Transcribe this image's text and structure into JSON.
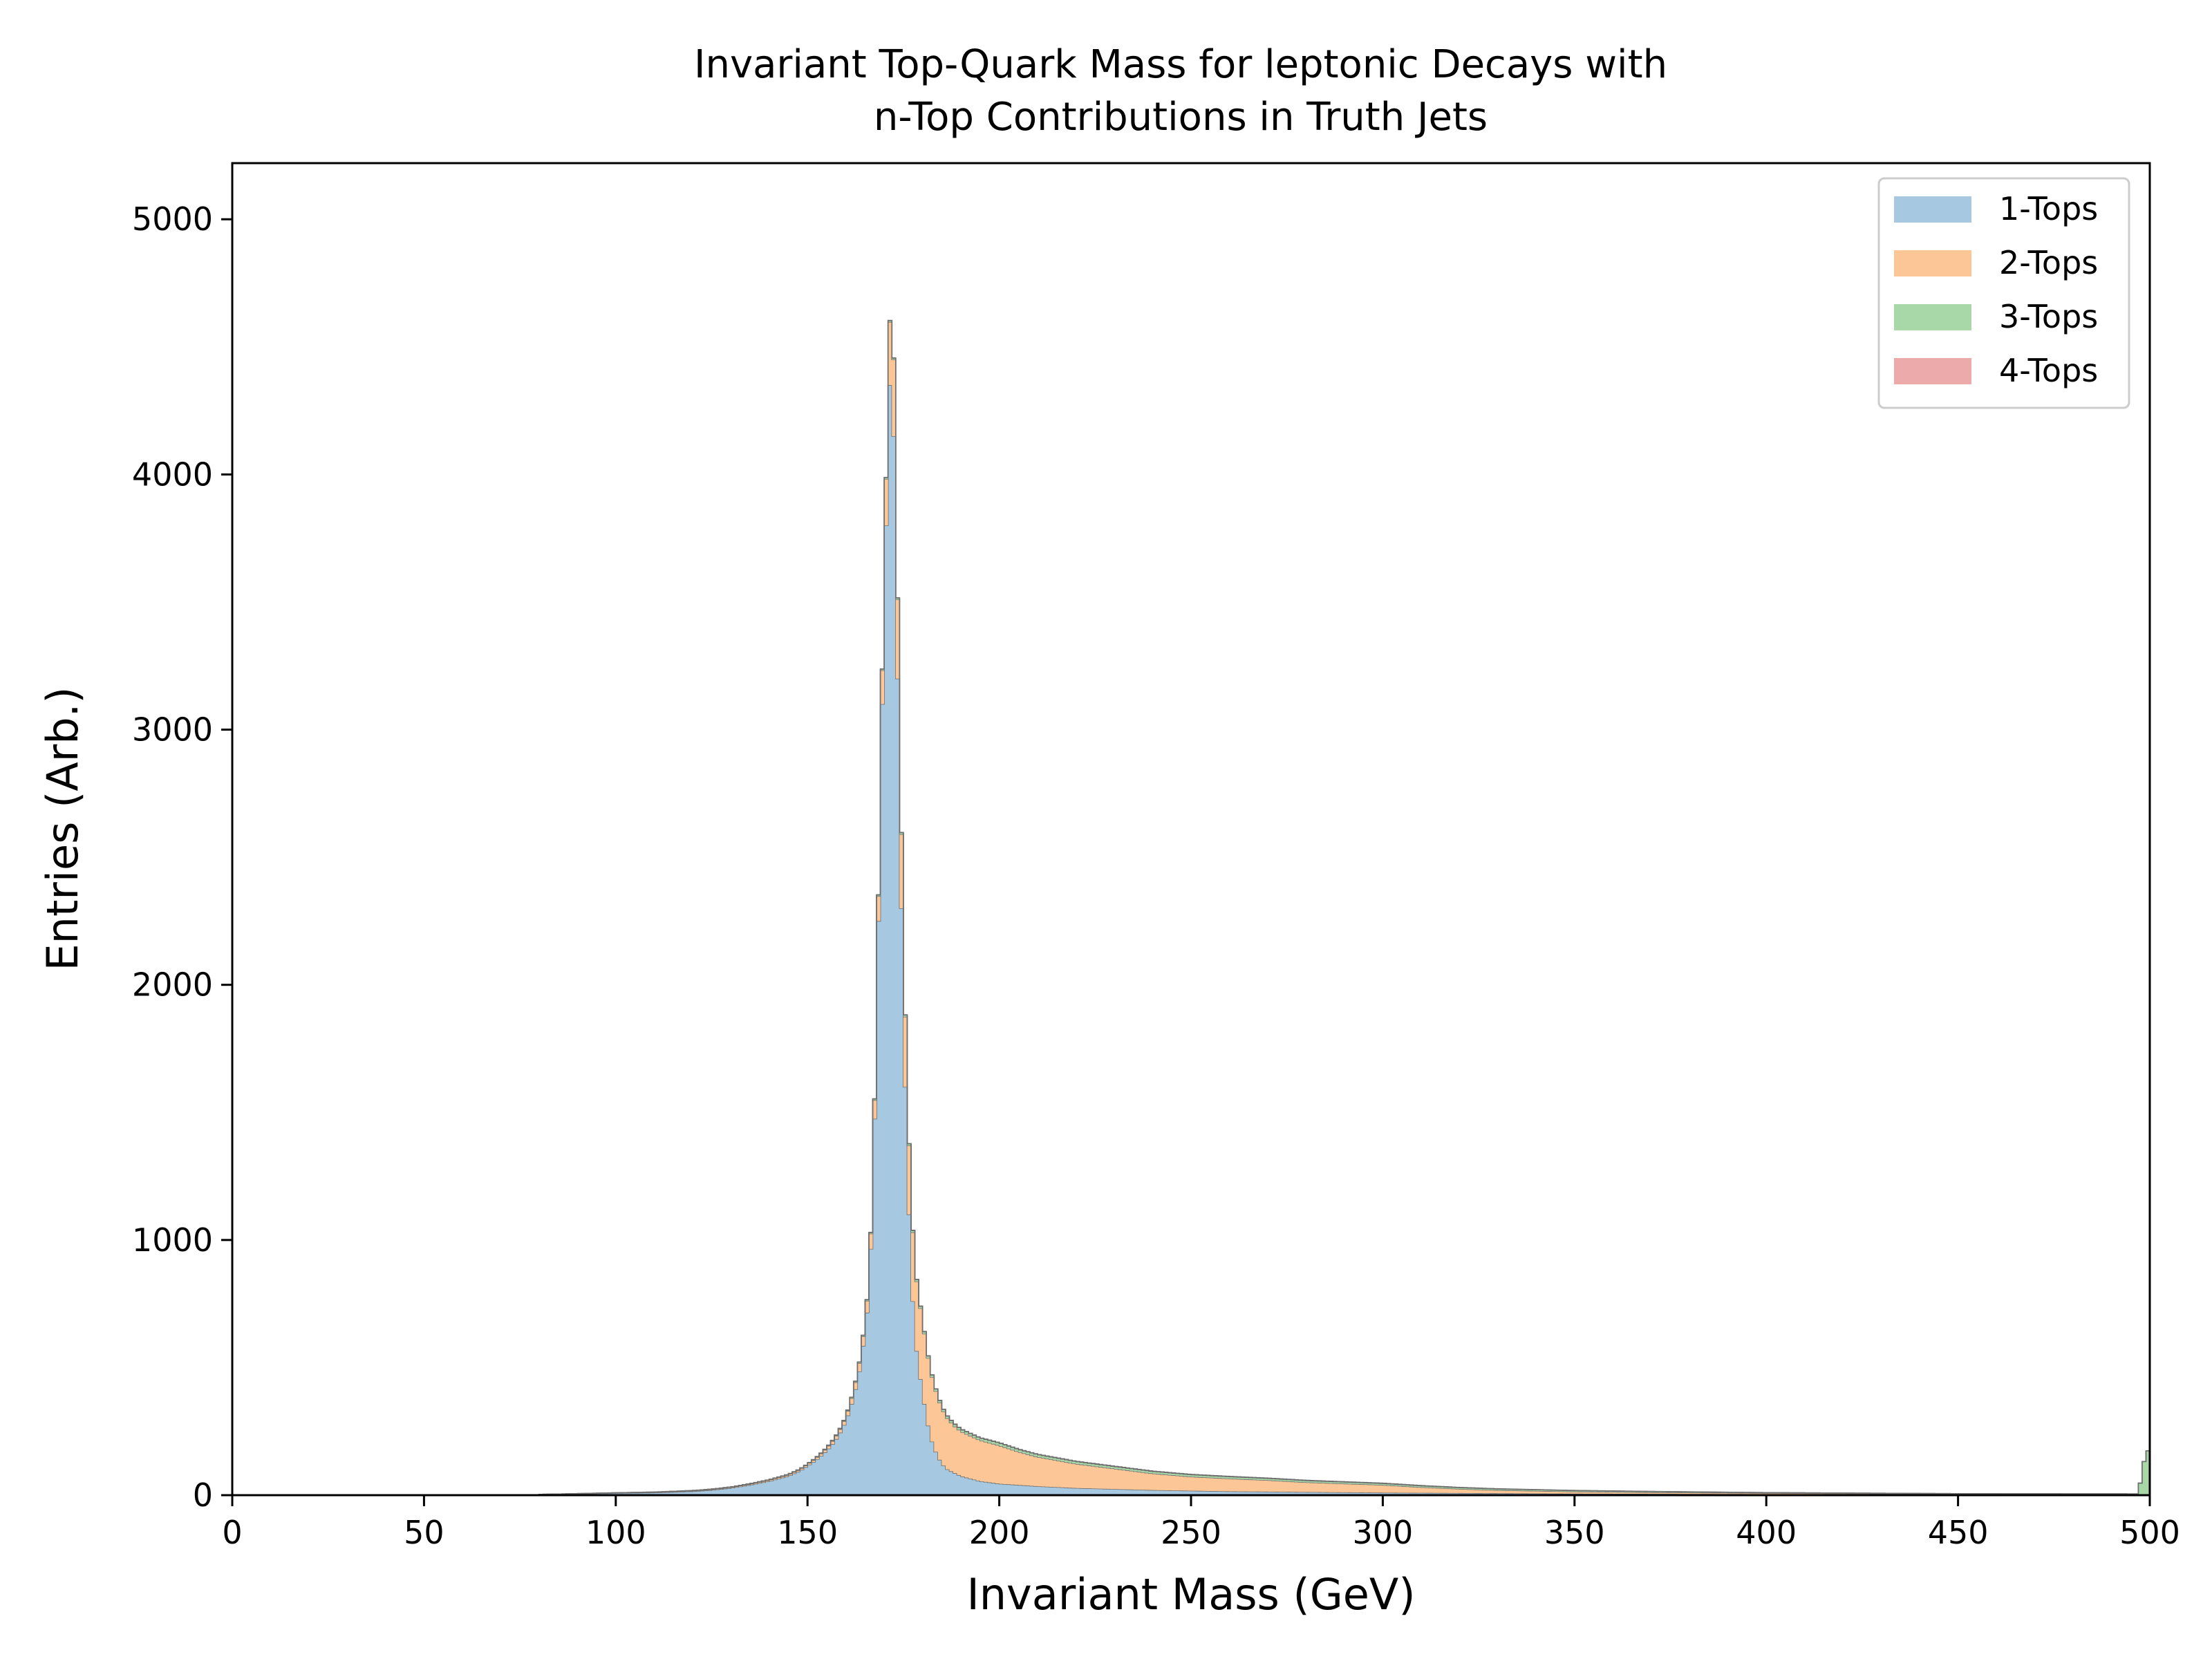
{
  "chart_data": {
    "type": "bar",
    "subtype": "stacked-step-histogram",
    "title": [
      "Invariant Top-Quark Mass for leptonic Decays with",
      "n-Top Contributions in Truth Jets"
    ],
    "xlabel": "Invariant Mass (GeV)",
    "ylabel": "Entries (Arb.)",
    "xlim": [
      0,
      500
    ],
    "ylim": [
      0,
      5220
    ],
    "xticks": [
      "0",
      "50",
      "100",
      "150",
      "200",
      "250",
      "300",
      "350",
      "400",
      "450",
      "500"
    ],
    "yticks": [
      "0",
      "1000",
      "2000",
      "3000",
      "4000",
      "5000"
    ],
    "grid": false,
    "legend": {
      "placement": "top-right"
    },
    "series": [
      {
        "name": "1-Tops",
        "color": "#a6c8e0",
        "points": [
          [
            80,
            3
          ],
          [
            100,
            8
          ],
          [
            110,
            10
          ],
          [
            120,
            15
          ],
          [
            125,
            20
          ],
          [
            130,
            28
          ],
          [
            135,
            40
          ],
          [
            140,
            55
          ],
          [
            145,
            75
          ],
          [
            148,
            95
          ],
          [
            150,
            115
          ],
          [
            152,
            135
          ],
          [
            154,
            160
          ],
          [
            156,
            190
          ],
          [
            158,
            230
          ],
          [
            160,
            290
          ],
          [
            162,
            380
          ],
          [
            164,
            520
          ],
          [
            166,
            780
          ],
          [
            167,
            1150
          ],
          [
            168,
            1800
          ],
          [
            169,
            2700
          ],
          [
            170,
            3500
          ],
          [
            171,
            4100
          ],
          [
            172,
            4600
          ],
          [
            173,
            3700
          ],
          [
            174,
            2700
          ],
          [
            175,
            1900
          ],
          [
            176,
            1300
          ],
          [
            177,
            900
          ],
          [
            178,
            620
          ],
          [
            180,
            400
          ],
          [
            182,
            230
          ],
          [
            184,
            150
          ],
          [
            186,
            105
          ],
          [
            190,
            75
          ],
          [
            195,
            55
          ],
          [
            200,
            45
          ],
          [
            210,
            35
          ],
          [
            220,
            28
          ],
          [
            240,
            20
          ],
          [
            260,
            15
          ],
          [
            300,
            10
          ],
          [
            350,
            6
          ],
          [
            400,
            4
          ],
          [
            450,
            3
          ],
          [
            499,
            2
          ]
        ]
      },
      {
        "name": "2-Tops",
        "color": "#fdc696",
        "points": [
          [
            80,
            0
          ],
          [
            100,
            1
          ],
          [
            130,
            3
          ],
          [
            150,
            6
          ],
          [
            160,
            15
          ],
          [
            165,
            40
          ],
          [
            168,
            80
          ],
          [
            170,
            150
          ],
          [
            172,
            280
          ],
          [
            173,
            320
          ],
          [
            174,
            300
          ],
          [
            175,
            280
          ],
          [
            176,
            270
          ],
          [
            178,
            270
          ],
          [
            180,
            280
          ],
          [
            182,
            260
          ],
          [
            184,
            230
          ],
          [
            186,
            205
          ],
          [
            188,
            185
          ],
          [
            190,
            175
          ],
          [
            195,
            160
          ],
          [
            200,
            150
          ],
          [
            205,
            130
          ],
          [
            210,
            115
          ],
          [
            220,
            95
          ],
          [
            230,
            80
          ],
          [
            240,
            65
          ],
          [
            250,
            55
          ],
          [
            260,
            50
          ],
          [
            270,
            45
          ],
          [
            280,
            38
          ],
          [
            290,
            34
          ],
          [
            300,
            30
          ],
          [
            310,
            22
          ],
          [
            320,
            16
          ],
          [
            330,
            12
          ],
          [
            340,
            10
          ],
          [
            350,
            8
          ],
          [
            370,
            6
          ],
          [
            400,
            4
          ],
          [
            450,
            2
          ],
          [
            499,
            2
          ]
        ]
      },
      {
        "name": "3-Tops",
        "color": "#a8d8a8",
        "points": [
          [
            80,
            0
          ],
          [
            150,
            1
          ],
          [
            170,
            5
          ],
          [
            180,
            8
          ],
          [
            200,
            10
          ],
          [
            220,
            9
          ],
          [
            250,
            8
          ],
          [
            300,
            6
          ],
          [
            350,
            4
          ],
          [
            400,
            2
          ],
          [
            450,
            1
          ],
          [
            497,
            1
          ],
          [
            499,
            170
          ]
        ]
      },
      {
        "name": "4-Tops",
        "color": "#ecaaaa",
        "points": [
          [
            80,
            0
          ],
          [
            200,
            1
          ],
          [
            300,
            1
          ],
          [
            400,
            0
          ],
          [
            499,
            0
          ]
        ]
      }
    ]
  }
}
